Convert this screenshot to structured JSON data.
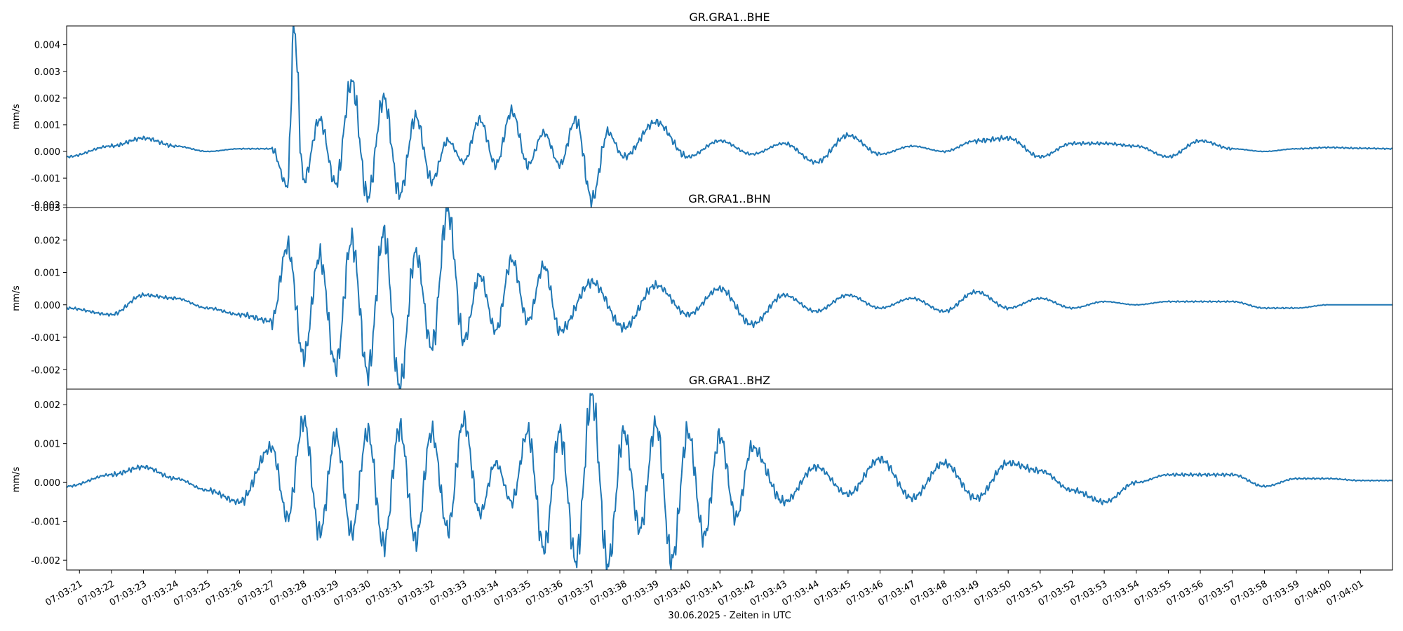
{
  "figure": {
    "xlabel": "30.06.2025 - Zeiten in UTC",
    "x_range": [
      "07:03:20.6",
      "07:04:02.0"
    ],
    "x_ticks": [
      "07:03:21",
      "07:03:22",
      "07:03:23",
      "07:03:24",
      "07:03:25",
      "07:03:26",
      "07:03:27",
      "07:03:28",
      "07:03:29",
      "07:03:30",
      "07:03:31",
      "07:03:32",
      "07:03:33",
      "07:03:34",
      "07:03:35",
      "07:03:36",
      "07:03:37",
      "07:03:38",
      "07:03:39",
      "07:03:40",
      "07:03:41",
      "07:03:42",
      "07:03:43",
      "07:03:44",
      "07:03:45",
      "07:03:46",
      "07:03:47",
      "07:03:48",
      "07:03:49",
      "07:03:50",
      "07:03:51",
      "07:03:52",
      "07:03:53",
      "07:03:54",
      "07:03:55",
      "07:03:56",
      "07:03:57",
      "07:03:58",
      "07:03:59",
      "07:04:00",
      "07:04:01"
    ],
    "line_color": "#1f77b4"
  },
  "chart_data": [
    {
      "type": "line",
      "title": "GR.GRA1..BHE",
      "ylabel": "mm/s",
      "ylim": [
        -0.0021,
        0.0047
      ],
      "y_ticks": [
        "-0.002",
        "-0.001",
        "0.000",
        "0.001",
        "0.002",
        "0.003",
        "0.004"
      ],
      "x": [
        "07:03:20.6",
        "07:03:22.0",
        "07:03:23.0",
        "07:03:24.0",
        "07:03:25.0",
        "07:03:26.0",
        "07:03:27.0",
        "07:03:27.5",
        "07:03:27.7",
        "07:03:28.0",
        "07:03:28.5",
        "07:03:29.0",
        "07:03:29.5",
        "07:03:30.0",
        "07:03:30.5",
        "07:03:31.0",
        "07:03:31.5",
        "07:03:32.0",
        "07:03:32.5",
        "07:03:33.0",
        "07:03:33.5",
        "07:03:34.0",
        "07:03:34.5",
        "07:03:35.0",
        "07:03:35.5",
        "07:03:36.0",
        "07:03:36.5",
        "07:03:37.0",
        "07:03:37.5",
        "07:03:38.0",
        "07:03:39.0",
        "07:03:40.0",
        "07:03:41.0",
        "07:03:42.0",
        "07:03:43.0",
        "07:03:44.0",
        "07:03:45.0",
        "07:03:46.0",
        "07:03:47.0",
        "07:03:48.0",
        "07:03:49.0",
        "07:03:50.0",
        "07:03:51.0",
        "07:03:52.0",
        "07:03:53.0",
        "07:03:54.0",
        "07:03:55.0",
        "07:03:56.0",
        "07:03:57.0",
        "07:03:58.0",
        "07:03:59.0",
        "07:04:00.0",
        "07:04:01.0",
        "07:04:02.0"
      ],
      "y": [
        -0.0002,
        0.0002,
        0.0005,
        0.0002,
        0.0,
        0.0001,
        0.0001,
        -0.0013,
        0.0046,
        -0.0011,
        0.0012,
        -0.0012,
        0.0026,
        -0.0017,
        0.002,
        -0.0016,
        0.0013,
        -0.0011,
        0.0004,
        -0.0004,
        0.0012,
        -0.0005,
        0.0015,
        -0.0005,
        0.0007,
        -0.0005,
        0.0012,
        -0.0018,
        0.0007,
        -0.0002,
        0.0011,
        -0.0002,
        0.0004,
        -0.0001,
        0.0003,
        -0.0004,
        0.0006,
        -0.0001,
        0.0002,
        0.0,
        0.0004,
        0.0005,
        -0.0002,
        0.0003,
        0.0003,
        0.0002,
        -0.0002,
        0.0004,
        0.0001,
        0.0,
        0.0001,
        0.00015,
        0.00012,
        0.0001
      ]
    },
    {
      "type": "line",
      "title": "GR.GRA1..BHN",
      "ylabel": "mm/s",
      "ylim": [
        -0.0026,
        0.003
      ],
      "y_ticks": [
        "-0.002",
        "-0.001",
        "0.000",
        "0.001",
        "0.002",
        "0.003"
      ],
      "x": [
        "07:03:20.6",
        "07:03:22.0",
        "07:03:23.0",
        "07:03:24.0",
        "07:03:25.0",
        "07:03:26.0",
        "07:03:27.0",
        "07:03:27.5",
        "07:03:28.0",
        "07:03:28.5",
        "07:03:29.0",
        "07:03:29.5",
        "07:03:30.0",
        "07:03:30.5",
        "07:03:31.0",
        "07:03:31.5",
        "07:03:32.0",
        "07:03:32.5",
        "07:03:33.0",
        "07:03:33.5",
        "07:03:34.0",
        "07:03:34.5",
        "07:03:35.0",
        "07:03:35.5",
        "07:03:36.0",
        "07:03:37.0",
        "07:03:38.0",
        "07:03:39.0",
        "07:03:40.0",
        "07:03:41.0",
        "07:03:42.0",
        "07:03:43.0",
        "07:03:44.0",
        "07:03:45.0",
        "07:03:46.0",
        "07:03:47.0",
        "07:03:48.0",
        "07:03:49.0",
        "07:03:50.0",
        "07:03:51.0",
        "07:03:52.0",
        "07:03:53.0",
        "07:03:54.0",
        "07:03:55.0",
        "07:03:56.0",
        "07:03:57.0",
        "07:03:58.0",
        "07:03:59.0",
        "07:04:00.0",
        "07:04:01.0",
        "07:04:02.0"
      ],
      "y": [
        -0.0001,
        -0.0003,
        0.0003,
        0.0002,
        -0.0001,
        -0.0003,
        -0.0005,
        0.0018,
        -0.0016,
        0.0015,
        -0.0019,
        0.002,
        -0.0021,
        0.0022,
        -0.0025,
        0.0016,
        -0.0013,
        0.0029,
        -0.0011,
        0.0009,
        -0.0008,
        0.0014,
        -0.0005,
        0.0012,
        -0.0008,
        0.0007,
        -0.0007,
        0.0006,
        -0.0003,
        0.0005,
        -0.0006,
        0.0003,
        -0.0002,
        0.0003,
        -0.0001,
        0.0002,
        -0.0002,
        0.0004,
        -0.0001,
        0.0002,
        -0.0001,
        0.0001,
        0.0,
        0.0001,
        0.0001,
        0.0001,
        -0.0001,
        -0.0001,
        0.0,
        0.0,
        0.0
      ]
    },
    {
      "type": "line",
      "title": "GR.GRA1..BHZ",
      "ylabel": "mm/s",
      "ylim": [
        -0.00225,
        0.0024
      ],
      "y_ticks": [
        "-0.002",
        "-0.001",
        "0.000",
        "0.001",
        "0.002"
      ],
      "x": [
        "07:03:20.6",
        "07:03:22.0",
        "07:03:23.0",
        "07:03:24.0",
        "07:03:25.0",
        "07:03:26.0",
        "07:03:27.0",
        "07:03:27.5",
        "07:03:28.0",
        "07:03:28.5",
        "07:03:29.0",
        "07:03:29.5",
        "07:03:30.0",
        "07:03:30.5",
        "07:03:31.0",
        "07:03:31.5",
        "07:03:32.0",
        "07:03:32.5",
        "07:03:33.0",
        "07:03:33.5",
        "07:03:34.0",
        "07:03:34.5",
        "07:03:35.0",
        "07:03:35.5",
        "07:03:36.0",
        "07:03:36.5",
        "07:03:37.0",
        "07:03:37.5",
        "07:03:38.0",
        "07:03:38.5",
        "07:03:39.0",
        "07:03:39.5",
        "07:03:40.0",
        "07:03:40.5",
        "07:03:41.0",
        "07:03:41.5",
        "07:03:42.0",
        "07:03:43.0",
        "07:03:44.0",
        "07:03:45.0",
        "07:03:46.0",
        "07:03:47.0",
        "07:03:48.0",
        "07:03:49.0",
        "07:03:50.0",
        "07:03:51.0",
        "07:03:52.0",
        "07:03:53.0",
        "07:03:54.0",
        "07:03:55.0",
        "07:03:56.0",
        "07:03:57.0",
        "07:03:58.0",
        "07:03:59.0",
        "07:04:00.0",
        "07:04:01.0",
        "07:04:02.0"
      ],
      "y": [
        -0.0001,
        0.0002,
        0.0004,
        0.0001,
        -0.0002,
        -0.0005,
        0.0009,
        -0.0009,
        0.0016,
        -0.0013,
        0.0012,
        -0.0013,
        0.0013,
        -0.0016,
        0.0014,
        -0.0015,
        0.0013,
        -0.0012,
        0.0016,
        -0.0008,
        0.0005,
        -0.0005,
        0.0013,
        -0.0017,
        0.0013,
        -0.002,
        0.0022,
        -0.0021,
        0.0013,
        -0.0012,
        0.0015,
        -0.002,
        0.0013,
        -0.0014,
        0.0012,
        -0.0009,
        0.0009,
        -0.0005,
        0.0004,
        -0.0003,
        0.0006,
        -0.0004,
        0.0005,
        -0.0004,
        0.0005,
        0.0003,
        -0.0002,
        -0.0005,
        0.0,
        0.0002,
        0.0002,
        0.0002,
        -0.0001,
        0.0001,
        0.0001,
        5e-05,
        5e-05
      ]
    }
  ]
}
